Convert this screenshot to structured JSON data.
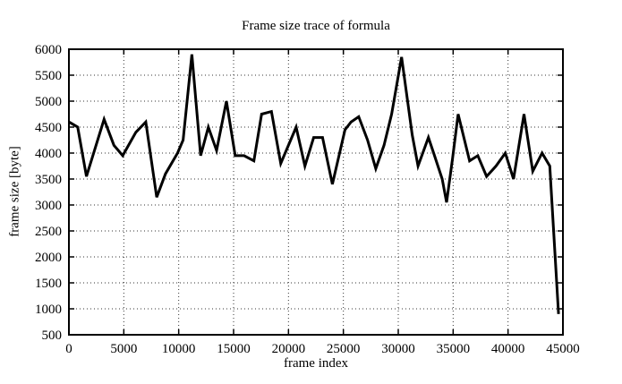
{
  "figure": {
    "background": "#ffffff",
    "foreground": "#000000"
  },
  "chart_data": {
    "type": "line",
    "title": "Frame size trace of formula",
    "xlabel": "frame index",
    "ylabel": "frame size [byte]",
    "xlim": [
      0,
      45000
    ],
    "ylim": [
      500,
      6000
    ],
    "xticks": [
      0,
      5000,
      10000,
      15000,
      20000,
      25000,
      30000,
      35000,
      40000,
      45000
    ],
    "yticks": [
      500,
      1000,
      1500,
      2000,
      2500,
      3000,
      3500,
      4000,
      4500,
      5000,
      5500,
      6000
    ],
    "grid": true,
    "grid_style": "dotted",
    "legend_position": "none",
    "line_color": "#000000",
    "line_width": 3,
    "series": [
      {
        "name": "frame size",
        "points": [
          [
            0,
            4600
          ],
          [
            800,
            4500
          ],
          [
            1600,
            3550
          ],
          [
            3200,
            4650
          ],
          [
            4100,
            4150
          ],
          [
            4900,
            3950
          ],
          [
            6100,
            4400
          ],
          [
            7000,
            4600
          ],
          [
            8000,
            3150
          ],
          [
            8800,
            3600
          ],
          [
            9900,
            4000
          ],
          [
            10400,
            4250
          ],
          [
            11200,
            5900
          ],
          [
            12000,
            3950
          ],
          [
            12700,
            4500
          ],
          [
            13450,
            4050
          ],
          [
            14350,
            5000
          ],
          [
            15150,
            3950
          ],
          [
            15950,
            3950
          ],
          [
            16850,
            3850
          ],
          [
            17550,
            4750
          ],
          [
            18450,
            4800
          ],
          [
            19300,
            3800
          ],
          [
            20700,
            4500
          ],
          [
            21500,
            3750
          ],
          [
            22300,
            4300
          ],
          [
            23100,
            4300
          ],
          [
            24000,
            3400
          ],
          [
            25150,
            4450
          ],
          [
            25700,
            4600
          ],
          [
            26400,
            4700
          ],
          [
            27200,
            4250
          ],
          [
            27950,
            3700
          ],
          [
            28700,
            4150
          ],
          [
            29400,
            4750
          ],
          [
            30300,
            5850
          ],
          [
            31270,
            4350
          ],
          [
            31800,
            3750
          ],
          [
            32750,
            4300
          ],
          [
            33300,
            3950
          ],
          [
            34000,
            3500
          ],
          [
            34400,
            3050
          ],
          [
            34950,
            3900
          ],
          [
            35450,
            4750
          ],
          [
            36500,
            3850
          ],
          [
            37250,
            3950
          ],
          [
            38050,
            3550
          ],
          [
            38900,
            3750
          ],
          [
            39750,
            4000
          ],
          [
            40500,
            3500
          ],
          [
            41450,
            4750
          ],
          [
            42250,
            3650
          ],
          [
            43100,
            4000
          ],
          [
            43800,
            3750
          ],
          [
            44600,
            900
          ]
        ]
      }
    ]
  }
}
